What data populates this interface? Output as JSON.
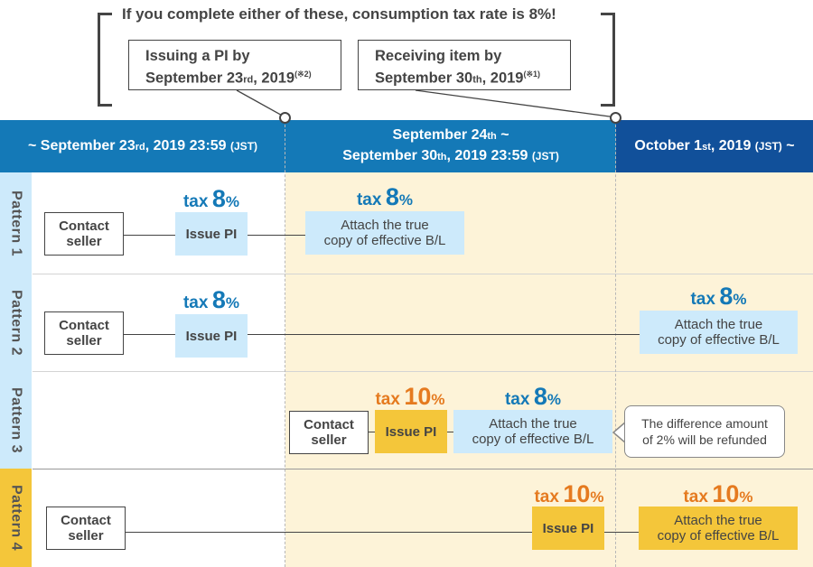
{
  "callout": {
    "headline": "If you complete either of these, consumption tax rate is 8%!",
    "conditions": [
      {
        "line1": "Issuing a PI by",
        "line2_main": "September 23",
        "line2_suffix": "rd",
        "line2_end": ", 2019",
        "note": "(※2)"
      },
      {
        "line1": "Receiving item by",
        "line2_main": "September 30",
        "line2_suffix": "th",
        "line2_end": ", 2019",
        "note": "(※1)"
      }
    ]
  },
  "columns": [
    {
      "p1": "~ September 23",
      "s1": "rd",
      "p2": ", 2019 23:59 ",
      "jst": "(JST)",
      "color": "#1479b7"
    },
    {
      "l1a": "September 24",
      "l1s": "th",
      "l1b": " ~",
      "l2a": "September 30",
      "l2s": "th",
      "l2b": ", 2019 23:59 ",
      "jst": "(JST)",
      "color": "#1479b7"
    },
    {
      "p1": "October 1",
      "s1": "st",
      "p2": ", 2019 ",
      "jst": "(JST)",
      "p3": " ~",
      "color": "#11509a"
    }
  ],
  "tax": {
    "word": "tax",
    "eight": "8",
    "ten": "10",
    "pct": "%"
  },
  "labels": {
    "contact": [
      "Contact",
      "seller"
    ],
    "issue_pi": "Issue PI",
    "attach": [
      "Attach the true",
      "copy of effective B/L"
    ],
    "refund": [
      "The difference amount",
      "of 2% will be refunded"
    ]
  },
  "patterns": [
    {
      "label": "Pattern 1",
      "color": "#cdeafb"
    },
    {
      "label": "Pattern 2",
      "color": "#cdeafb"
    },
    {
      "label": "Pattern 3",
      "color": "#cdeafb"
    },
    {
      "label": "Pattern 4",
      "color": "#f4c63a"
    }
  ],
  "colors": {
    "tax8": "#1479b7",
    "tax10": "#e57a1f",
    "period_bg": "#fdf3d8"
  }
}
